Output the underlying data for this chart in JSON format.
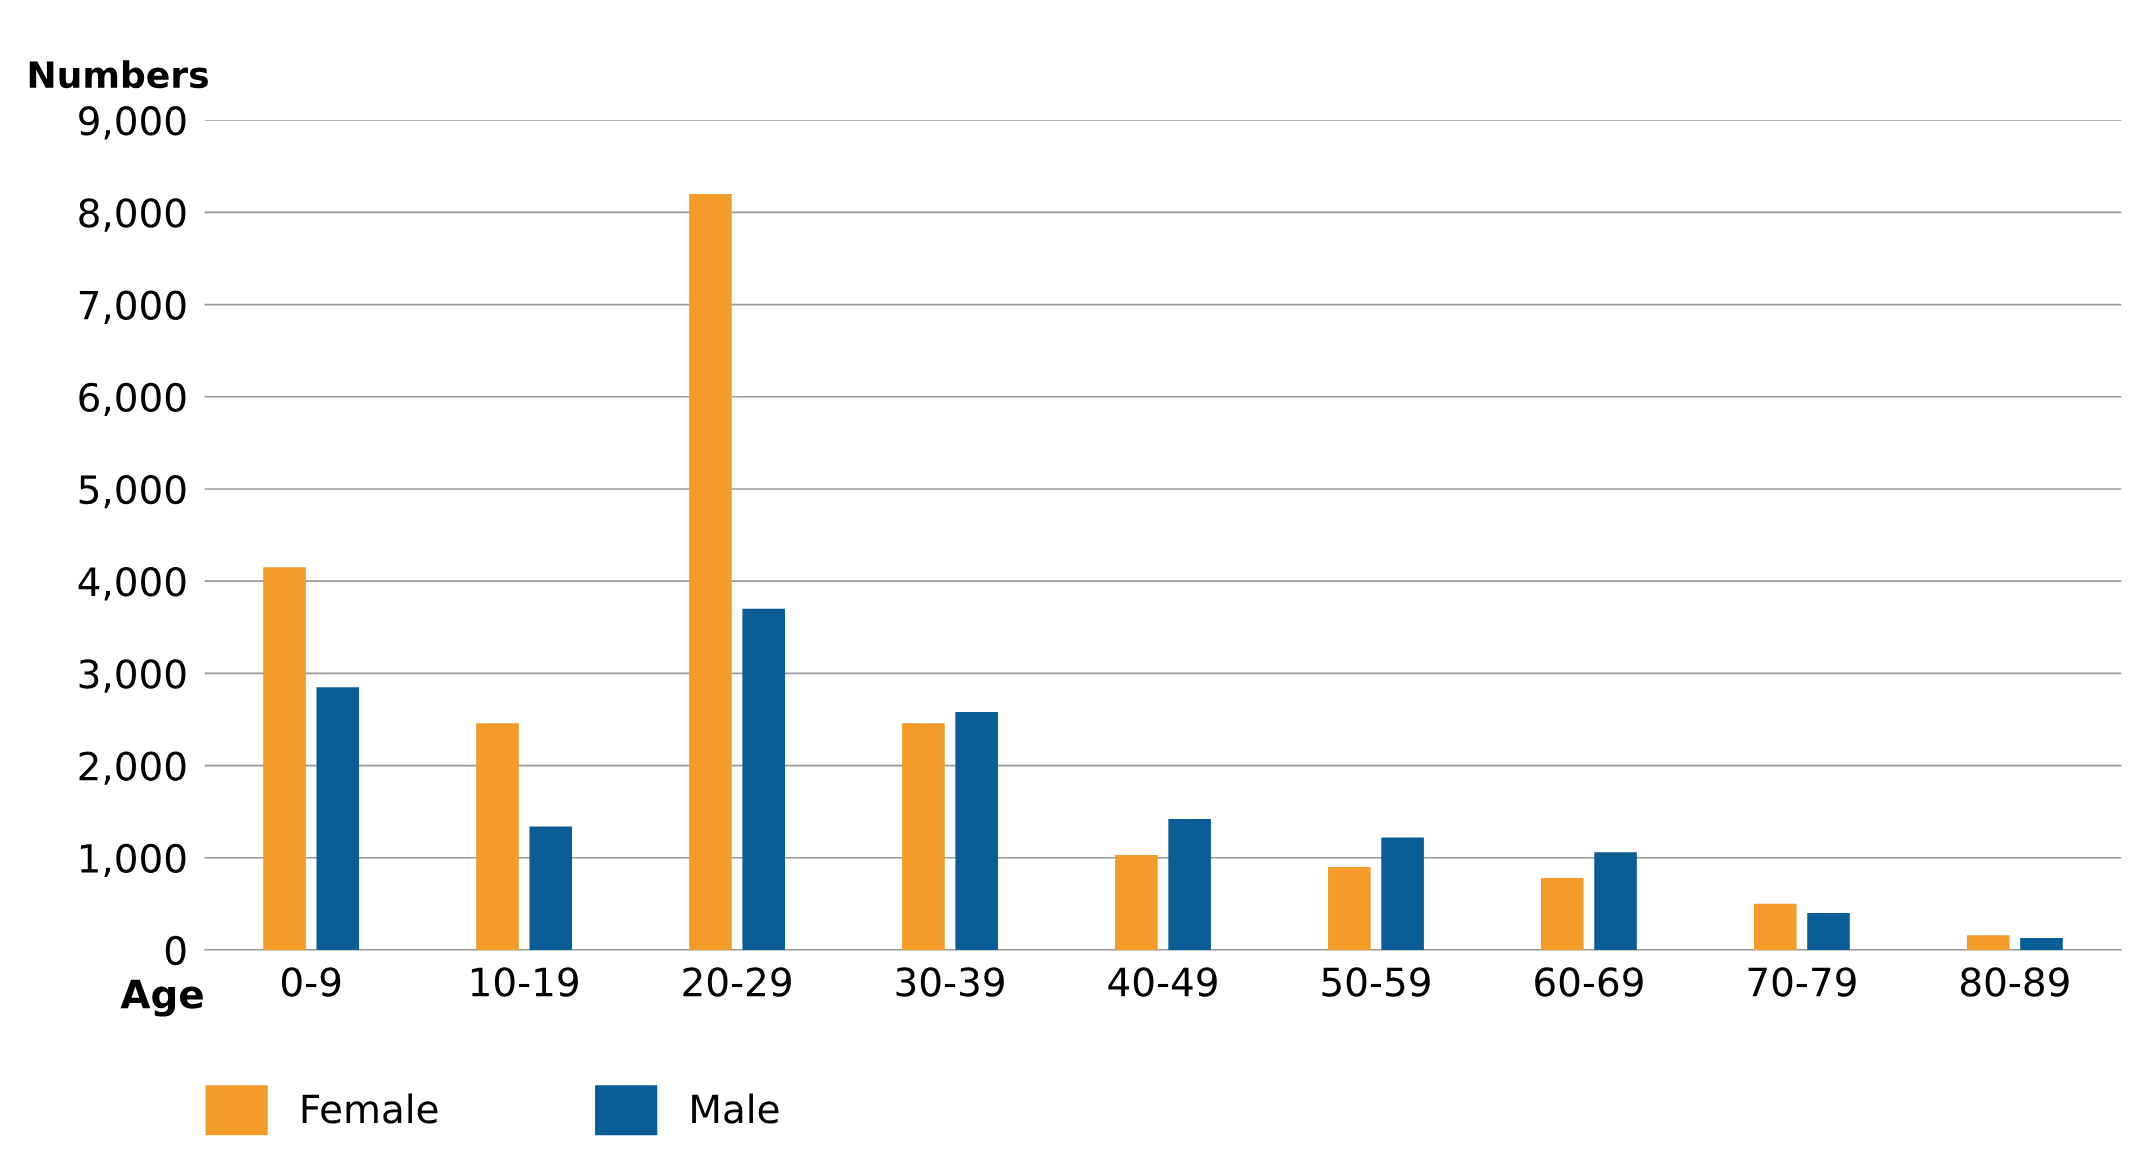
{
  "chart_data": {
    "type": "bar",
    "ylabel": "Numbers",
    "xlabel": "Age",
    "categories": [
      "0-9",
      "10-19",
      "20-29",
      "30-39",
      "40-49",
      "50-59",
      "60-69",
      "70-79",
      "80-89"
    ],
    "series": [
      {
        "name": "Female",
        "color": "#f39c2a",
        "values": [
          4150,
          2460,
          8200,
          2460,
          1030,
          900,
          780,
          500,
          160
        ]
      },
      {
        "name": "Male",
        "color": "#0b5e95",
        "values": [
          2850,
          1340,
          3700,
          2580,
          1420,
          1220,
          1060,
          400,
          130
        ]
      }
    ],
    "ylim": [
      0,
      9000
    ],
    "yticks": [
      {
        "value": 0,
        "label": "0"
      },
      {
        "value": 1000,
        "label": "1,000"
      },
      {
        "value": 2000,
        "label": "2,000"
      },
      {
        "value": 3000,
        "label": "3,000"
      },
      {
        "value": 4000,
        "label": "4,000"
      },
      {
        "value": 5000,
        "label": "5,000"
      },
      {
        "value": 6000,
        "label": "6,000"
      },
      {
        "value": 7000,
        "label": "7,000"
      },
      {
        "value": 8000,
        "label": "8,000"
      },
      {
        "value": 9000,
        "label": "9,000"
      }
    ],
    "grid": "y",
    "legend": "bottom"
  }
}
